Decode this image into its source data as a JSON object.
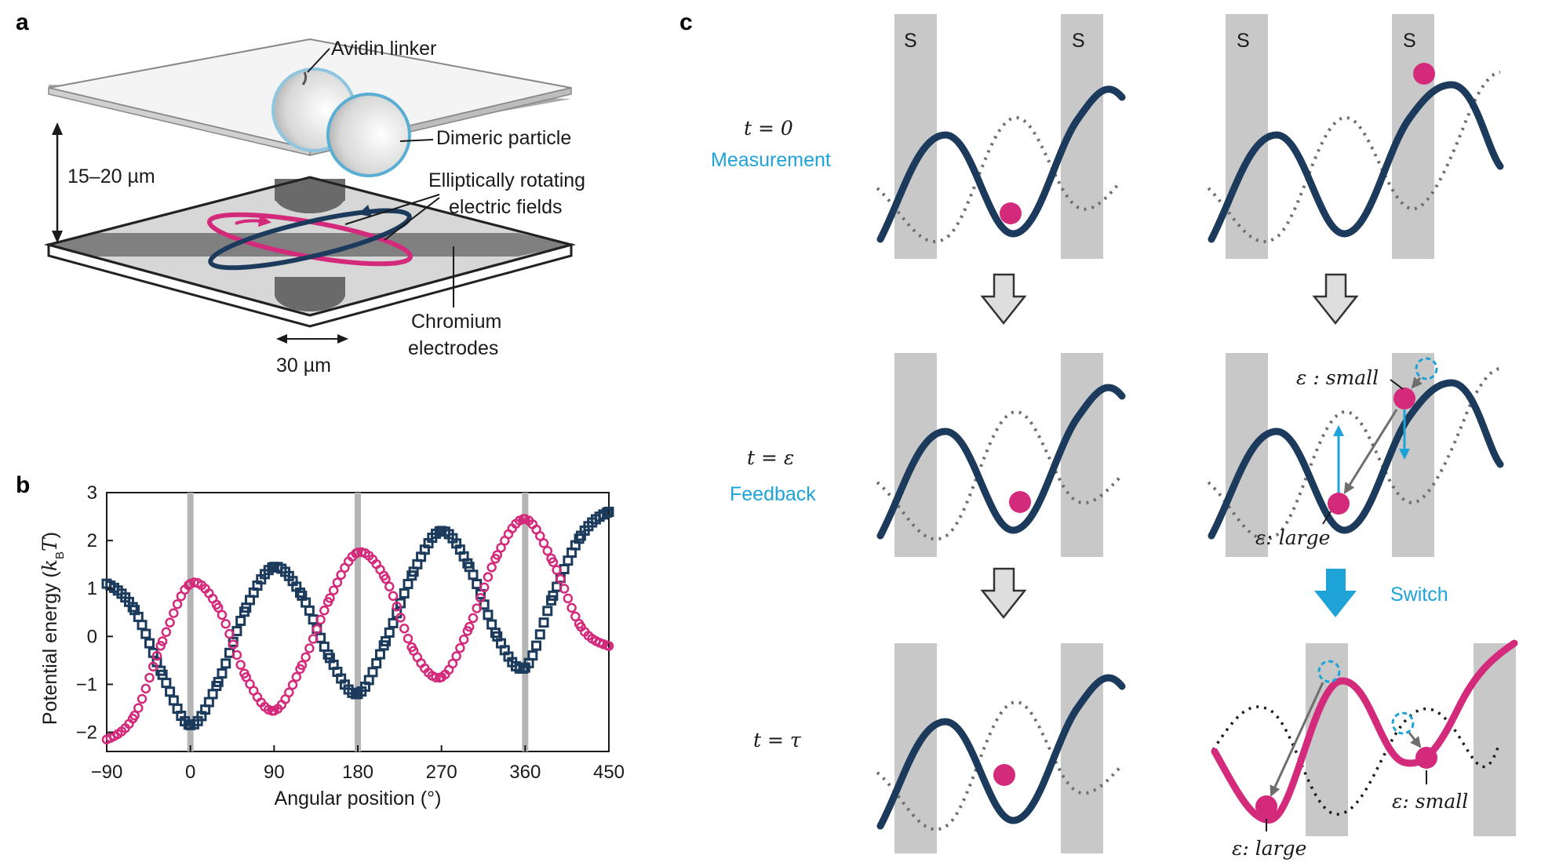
{
  "panels": {
    "a": {
      "label": "a",
      "annotations": {
        "avidin": "Avidin linker",
        "dimeric": "Dimeric particle",
        "gap": "15–20 µm",
        "fields_line1": "Elliptically rotating",
        "fields_line2": "electric fields",
        "electrodes_line1": "Chromium",
        "electrodes_line2": "electrodes",
        "width": "30 µm"
      }
    },
    "b": {
      "label": "b"
    },
    "c": {
      "label": "c",
      "rows": [
        {
          "time": "t = 0",
          "caption": "Measurement"
        },
        {
          "time": "t = ε",
          "caption": "Feedback"
        },
        {
          "time": "t = τ",
          "caption": ""
        }
      ],
      "s_label": "S",
      "switch_label": "Switch",
      "eps_small": "ε : small",
      "eps_large": "ε: large",
      "eps_small_2": "ε: small",
      "eps_large_2": "ε: large"
    }
  },
  "colors": {
    "navy": "#1b3a5c",
    "magenta": "#d42a7c",
    "cyan": "#1ea3d8",
    "gray_band": "#c8c8c8",
    "dotted": "#6e6e6e"
  },
  "chart_data": {
    "type": "scatter",
    "xlabel": "Angular position (°)",
    "ylabel": "Potential energy (k_B T)",
    "ylabel_main": "Potential energy (",
    "ylabel_k": "k",
    "ylabel_sub": "B",
    "ylabel_T": "T",
    "ylabel_close": ")",
    "xlim": [
      -90,
      450
    ],
    "ylim": [
      -2.4,
      3.0
    ],
    "xticks": [
      -90,
      0,
      90,
      180,
      270,
      360,
      450
    ],
    "xtick_labels": [
      "−90",
      "0",
      "90",
      "180",
      "270",
      "360",
      "450"
    ],
    "yticks": [
      -2,
      -1,
      0,
      1,
      2,
      3
    ],
    "ytick_labels": [
      "−2",
      "−1",
      "0",
      "1",
      "2",
      "3"
    ],
    "vlines": [
      0,
      180,
      360
    ],
    "series": [
      {
        "marker": "square",
        "color": "#1b3a5c",
        "x": [
          -90,
          -60,
          -30,
          0,
          30,
          60,
          90,
          120,
          150,
          180,
          210,
          240,
          270,
          300,
          330,
          360,
          390,
          420,
          450
        ],
        "y": [
          1.1,
          0.55,
          -0.8,
          -1.85,
          -0.95,
          0.6,
          1.45,
          0.85,
          -0.45,
          -1.2,
          -0.1,
          1.35,
          2.2,
          1.45,
          0.0,
          -0.65,
          0.85,
          2.1,
          2.6
        ]
      },
      {
        "marker": "circle",
        "color": "#d42a7c",
        "x": [
          -90,
          -60,
          -30,
          0,
          30,
          60,
          90,
          120,
          150,
          180,
          210,
          240,
          270,
          300,
          330,
          360,
          390,
          420,
          450
        ],
        "y": [
          -2.15,
          -1.65,
          -0.1,
          1.1,
          0.6,
          -0.85,
          -1.55,
          -0.6,
          0.8,
          1.75,
          1.2,
          -0.3,
          -0.85,
          0.2,
          1.7,
          2.45,
          1.55,
          0.2,
          -0.2
        ]
      }
    ]
  }
}
